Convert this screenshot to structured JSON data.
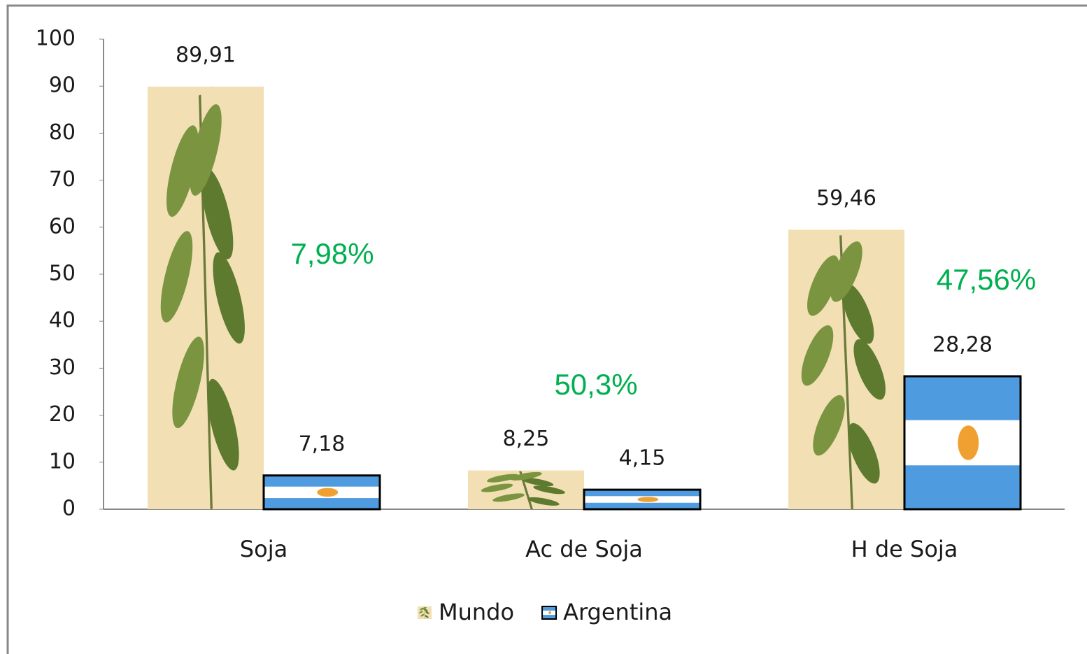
{
  "chart_data": {
    "type": "bar",
    "categories": [
      "Soja",
      "Ac de Soja",
      "H de Soja"
    ],
    "series": [
      {
        "name": "Mundo",
        "color": "#f2e0b4",
        "values": [
          89.91,
          8.25,
          59.46
        ],
        "value_labels": [
          "89,91",
          "8,25",
          "59,46"
        ]
      },
      {
        "name": "Argentina",
        "color": "#4f9be0",
        "values": [
          7.18,
          4.15,
          28.28
        ],
        "value_labels": [
          "7,18",
          "4,15",
          "28,28"
        ]
      }
    ],
    "annotations": [
      "7,98%",
      "50,3%",
      "47,56%"
    ],
    "annotation_color": "#00b050",
    "ylim": [
      0,
      100
    ],
    "yticks": [
      0,
      10,
      20,
      30,
      40,
      50,
      60,
      70,
      80,
      90,
      100
    ],
    "grid": false,
    "legend": "bottom"
  }
}
